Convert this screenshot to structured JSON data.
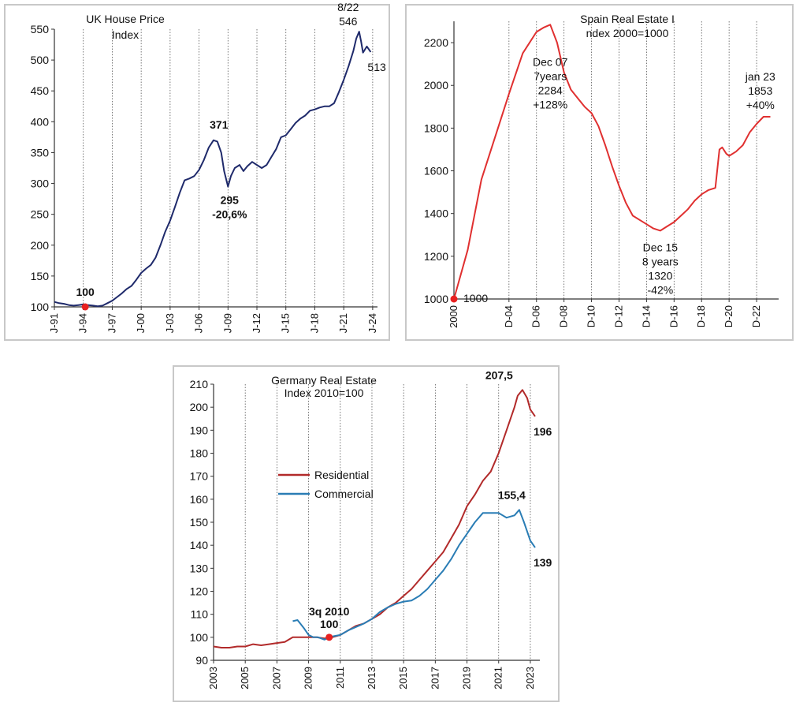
{
  "chart_data": [
    {
      "type": "line",
      "title": "UK House Price\nIndex",
      "ylim": [
        100,
        550
      ],
      "yticks": [
        100,
        150,
        200,
        250,
        300,
        350,
        400,
        450,
        500,
        550
      ],
      "xlim": [
        1991,
        2024.5
      ],
      "xticks": [
        {
          "v": 1991,
          "label": "J-91"
        },
        {
          "v": 1994,
          "label": "J-94"
        },
        {
          "v": 1997,
          "label": "J-97"
        },
        {
          "v": 2000,
          "label": "J-00"
        },
        {
          "v": 2003,
          "label": "J-03"
        },
        {
          "v": 2006,
          "label": "J-06"
        },
        {
          "v": 2009,
          "label": "J-09"
        },
        {
          "v": 2012,
          "label": "J-12"
        },
        {
          "v": 2015,
          "label": "J-15"
        },
        {
          "v": 2018,
          "label": "J-18"
        },
        {
          "v": 2021,
          "label": "J-21"
        },
        {
          "v": 2024,
          "label": "J-24"
        }
      ],
      "grid": "vertical",
      "color": "#1f2a6b",
      "series": [
        {
          "x": [
            1991,
            1991.5,
            1992,
            1992.5,
            1993,
            1993.5,
            1994,
            1994.5,
            1995,
            1995.5,
            1996,
            1996.5,
            1997,
            1997.5,
            1998,
            1998.5,
            1999,
            1999.5,
            2000,
            2000.5,
            2001,
            2001.5,
            2002,
            2002.5,
            2003,
            2003.5,
            2004,
            2004.5,
            2005,
            2005.5,
            2006,
            2006.5,
            2007,
            2007.5,
            2007.9,
            2008.3,
            2008.6,
            2009.0,
            2009.3,
            2009.7,
            2010.2,
            2010.6,
            2011.0,
            2011.5,
            2012.0,
            2012.5,
            2013.0,
            2013.5,
            2014.0,
            2014.5,
            2015.0,
            2015.5,
            2016.0,
            2016.5,
            2017.0,
            2017.5,
            2018.0,
            2018.5,
            2019.0,
            2019.5,
            2020.0,
            2020.5,
            2021.0,
            2021.5,
            2022.0,
            2022.3,
            2022.6,
            2022.8,
            2023.0,
            2023.4,
            2023.8
          ],
          "y": [
            108,
            106,
            105,
            103,
            102,
            103,
            104,
            103,
            102,
            101,
            102,
            106,
            110,
            116,
            122,
            129,
            134,
            144,
            155,
            162,
            168,
            180,
            200,
            222,
            240,
            262,
            285,
            305,
            308,
            312,
            322,
            338,
            358,
            370,
            368,
            350,
            320,
            295,
            312,
            325,
            330,
            320,
            328,
            335,
            330,
            325,
            330,
            343,
            356,
            375,
            378,
            388,
            398,
            405,
            410,
            418,
            420,
            423,
            425,
            425,
            430,
            448,
            468,
            490,
            515,
            535,
            546,
            530,
            512,
            522,
            513
          ]
        }
      ],
      "annotations": [
        {
          "x": 1994.2,
          "y": 100,
          "text": "100",
          "bold": true,
          "marker": true
        },
        {
          "x": 2007.9,
          "y": 371,
          "text": "371",
          "bold": true
        },
        {
          "x": 2009.0,
          "y": 295,
          "text": "295",
          "bold": true
        },
        {
          "x": 2009.0,
          "y": 295,
          "text": "-20,6%",
          "bold": true
        },
        {
          "x": 2022.6,
          "y": 546,
          "text": "8/22"
        },
        {
          "x": 2022.6,
          "y": 546,
          "text": "546"
        },
        {
          "x": 2023.8,
          "y": 513,
          "text": "513"
        }
      ]
    },
    {
      "type": "line",
      "title": "Spain  Real Estate I\nndex 2000=1000",
      "ylim": [
        1000,
        2300
      ],
      "yticks": [
        1000,
        1200,
        1400,
        1600,
        1800,
        2000,
        2200
      ],
      "xlim": [
        2000,
        2023.6
      ],
      "xticks": [
        {
          "v": 2000,
          "label": "2000"
        },
        {
          "v": 2004,
          "label": "D-04"
        },
        {
          "v": 2006,
          "label": "D-06"
        },
        {
          "v": 2008,
          "label": "D-08"
        },
        {
          "v": 2010,
          "label": "D-10"
        },
        {
          "v": 2012,
          "label": "D-12"
        },
        {
          "v": 2014,
          "label": "D-14"
        },
        {
          "v": 2016,
          "label": "D-16"
        },
        {
          "v": 2018,
          "label": "D-18"
        },
        {
          "v": 2020,
          "label": "D-20"
        },
        {
          "v": 2022,
          "label": "D-22"
        }
      ],
      "grid": "vertical",
      "color": "#e03030",
      "series": [
        {
          "x": [
            2000,
            2001,
            2002,
            2003,
            2004,
            2005,
            2006,
            2006.5,
            2007,
            2007.5,
            2008,
            2008.5,
            2009,
            2009.5,
            2010,
            2010.5,
            2011,
            2011.5,
            2012,
            2012.5,
            2013,
            2013.5,
            2014,
            2014.5,
            2015,
            2015.5,
            2016,
            2016.5,
            2017,
            2017.5,
            2018,
            2018.5,
            2019,
            2019.3,
            2019.5,
            2019.8,
            2020,
            2020.5,
            2021,
            2021.5,
            2022,
            2022.5,
            2023
          ],
          "y": [
            1000,
            1230,
            1560,
            1760,
            1960,
            2150,
            2250,
            2270,
            2284,
            2200,
            2060,
            1980,
            1940,
            1900,
            1870,
            1810,
            1720,
            1620,
            1530,
            1450,
            1390,
            1370,
            1350,
            1330,
            1320,
            1340,
            1360,
            1390,
            1420,
            1460,
            1490,
            1510,
            1520,
            1700,
            1710,
            1680,
            1670,
            1690,
            1720,
            1780,
            1820,
            1853,
            1853
          ]
        }
      ],
      "annotations": [
        {
          "x": 2000,
          "y": 1000,
          "text": "1000",
          "marker": true
        },
        {
          "x": 2007,
          "y": 2284,
          "text": "Dec 07"
        },
        {
          "x": 2007,
          "y": 2284,
          "text": "7years"
        },
        {
          "x": 2007,
          "y": 2284,
          "text": "2284"
        },
        {
          "x": 2007,
          "y": 2284,
          "text": "+128%"
        },
        {
          "x": 2015,
          "y": 1320,
          "text": "Dec 15"
        },
        {
          "x": 2015,
          "y": 1320,
          "text": "8 years"
        },
        {
          "x": 2015,
          "y": 1320,
          "text": "1320"
        },
        {
          "x": 2015,
          "y": 1320,
          "text": "-42%"
        },
        {
          "x": 2022.5,
          "y": 1853,
          "text": "jan 23"
        },
        {
          "x": 2022.5,
          "y": 1853,
          "text": "1853"
        },
        {
          "x": 2022.5,
          "y": 1853,
          "text": "+40%"
        }
      ]
    },
    {
      "type": "line",
      "title": "Germany Real Estate\nIndex  2010=100",
      "ylim": [
        90,
        210
      ],
      "yticks": [
        90,
        100,
        110,
        120,
        130,
        140,
        150,
        160,
        170,
        180,
        190,
        200,
        210
      ],
      "xlim": [
        2003,
        2023.6
      ],
      "xticks": [
        {
          "v": 2003,
          "label": "2003"
        },
        {
          "v": 2005,
          "label": "2005"
        },
        {
          "v": 2007,
          "label": "2007"
        },
        {
          "v": 2009,
          "label": "2009"
        },
        {
          "v": 2011,
          "label": "2011"
        },
        {
          "v": 2013,
          "label": "2013"
        },
        {
          "v": 2015,
          "label": "2015"
        },
        {
          "v": 2017,
          "label": "2017"
        },
        {
          "v": 2019,
          "label": "2019"
        },
        {
          "v": 2021,
          "label": "2021"
        },
        {
          "v": 2023,
          "label": "2023"
        }
      ],
      "grid": "vertical",
      "legend": "center-left",
      "series": [
        {
          "name": "Residential",
          "color": "#b22a2a",
          "x": [
            2003,
            2003.5,
            2004,
            2004.5,
            2005,
            2005.5,
            2006,
            2006.5,
            2007,
            2007.5,
            2008,
            2008.5,
            2009,
            2009.5,
            2010,
            2010.5,
            2011,
            2011.5,
            2012,
            2012.5,
            2013,
            2013.5,
            2014,
            2014.5,
            2015,
            2015.5,
            2016,
            2016.5,
            2017,
            2017.5,
            2018,
            2018.5,
            2019,
            2019.5,
            2020,
            2020.5,
            2021,
            2021.5,
            2022,
            2022.2,
            2022.5,
            2022.8,
            2023,
            2023.3
          ],
          "y": [
            96,
            95.5,
            95.5,
            96,
            96,
            97,
            96.5,
            97,
            97.5,
            98,
            100,
            100,
            100,
            100,
            99.5,
            100,
            101,
            103,
            105,
            106,
            108,
            110,
            113,
            115,
            118,
            121,
            125,
            129,
            133,
            137,
            143,
            149,
            157,
            162,
            168,
            172,
            180,
            190,
            200,
            205,
            207.5,
            204,
            199,
            196
          ]
        },
        {
          "name": "Commercial",
          "color": "#2a7db5",
          "x": [
            2008,
            2008.3,
            2008.7,
            2009,
            2009.3,
            2009.6,
            2010,
            2010.3,
            2010.6,
            2011,
            2011.5,
            2012,
            2012.5,
            2013,
            2013.5,
            2014,
            2014.5,
            2015,
            2015.5,
            2016,
            2016.5,
            2017,
            2017.5,
            2018,
            2018.5,
            2019,
            2019.5,
            2020,
            2020.5,
            2021,
            2021.5,
            2022,
            2022.3,
            2022.6,
            2023,
            2023.3
          ],
          "y": [
            107,
            107.5,
            104,
            101,
            100,
            100,
            99,
            100,
            100.5,
            101,
            103,
            104.5,
            106,
            108,
            111,
            113,
            114.5,
            115.5,
            116,
            118,
            121,
            125,
            129,
            134,
            140,
            145,
            150,
            154,
            154,
            154,
            152,
            153,
            155.4,
            150,
            142,
            139
          ]
        }
      ],
      "annotations": [
        {
          "x": 2010.3,
          "y": 100,
          "text": "3q 2010",
          "bold": true,
          "marker": true
        },
        {
          "x": 2010.3,
          "y": 100,
          "text": "100",
          "bold": true
        },
        {
          "x": 2022.3,
          "y": 207.5,
          "text": "207,5",
          "bold": true
        },
        {
          "x": 2023.3,
          "y": 196,
          "text": "196",
          "bold": true
        },
        {
          "x": 2022.3,
          "y": 155.4,
          "text": "155,4",
          "bold": true
        },
        {
          "x": 2023.3,
          "y": 139,
          "text": "139",
          "bold": true
        }
      ]
    }
  ]
}
